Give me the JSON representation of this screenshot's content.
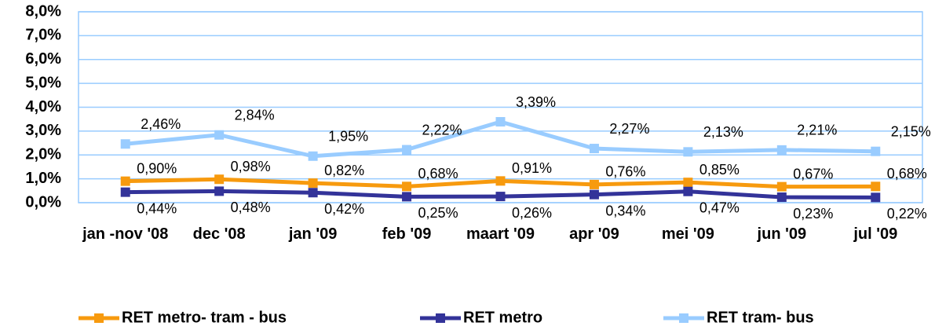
{
  "chart_data": {
    "type": "line",
    "categories": [
      "jan -nov '08",
      "dec '08",
      "jan '09",
      "feb '09",
      "maart '09",
      "apr '09",
      "mei '09",
      "jun '09",
      "jul '09"
    ],
    "series": [
      {
        "name": "RET metro- tram - bus",
        "color": "#f79a0e",
        "values": [
          0.9,
          0.98,
          0.82,
          0.68,
          0.91,
          0.76,
          0.85,
          0.67,
          0.68
        ],
        "value_labels": [
          "0,90%",
          "0,98%",
          "0,82%",
          "0,68%",
          "0,91%",
          "0,76%",
          "0,85%",
          "0,67%",
          "0,68%"
        ]
      },
      {
        "name": "RET metro",
        "color": "#333399",
        "values": [
          0.44,
          0.48,
          0.42,
          0.25,
          0.26,
          0.34,
          0.47,
          0.23,
          0.22
        ],
        "value_labels": [
          "0,44%",
          "0,48%",
          "0,42%",
          "0,25%",
          "0,26%",
          "0,34%",
          "0,47%",
          "0,23%",
          "0,22%"
        ]
      },
      {
        "name": "RET tram- bus",
        "color": "#99ccff",
        "values": [
          2.46,
          2.84,
          1.95,
          2.22,
          3.39,
          2.27,
          2.13,
          2.21,
          2.15
        ],
        "value_labels": [
          "2,46%",
          "2,84%",
          "1,95%",
          "2,22%",
          "3,39%",
          "2,27%",
          "2,13%",
          "2,21%",
          "2,15%"
        ]
      }
    ],
    "ylim": [
      0,
      8
    ],
    "yticks": [
      {
        "value": 0,
        "label": "0,0%"
      },
      {
        "value": 1,
        "label": "1,0%"
      },
      {
        "value": 2,
        "label": "2,0%"
      },
      {
        "value": 3,
        "label": "3,0%"
      },
      {
        "value": 4,
        "label": "4,0%"
      },
      {
        "value": 5,
        "label": "5,0%"
      },
      {
        "value": 6,
        "label": "6,0%"
      },
      {
        "value": 7,
        "label": "7,0%"
      },
      {
        "value": 8,
        "label": "8,0%"
      }
    ],
    "grid": true,
    "legend": "bottom"
  }
}
